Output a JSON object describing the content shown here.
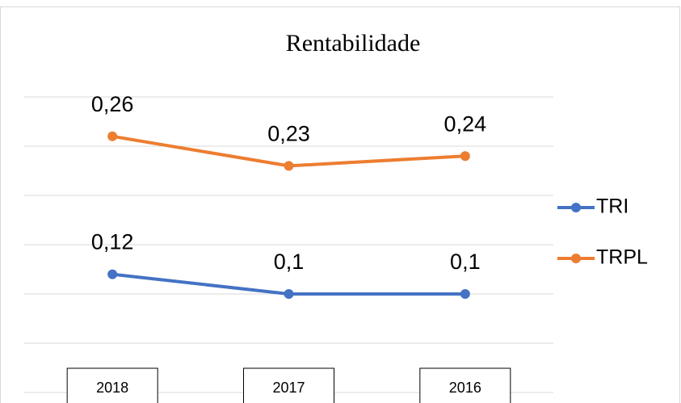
{
  "chart_data": {
    "type": "line",
    "title": "Rentabilidade",
    "categories": [
      "2018",
      "2017",
      "2016"
    ],
    "series": [
      {
        "name": "TRI",
        "color": "#4472c4",
        "values": [
          0.12,
          0.1,
          0.1
        ],
        "value_labels": [
          "0,12",
          "0,1",
          "0,1"
        ]
      },
      {
        "name": "TRPL",
        "color": "#ed7d31",
        "values": [
          0.26,
          0.23,
          0.24
        ],
        "value_labels": [
          "0,26",
          "0,23",
          "0,24"
        ]
      }
    ],
    "ylim": [
      0,
      0.3
    ],
    "yticks": [
      0,
      0.05,
      0.1,
      0.15,
      0.2,
      0.25,
      0.3
    ],
    "grid": true,
    "legend": "right"
  }
}
